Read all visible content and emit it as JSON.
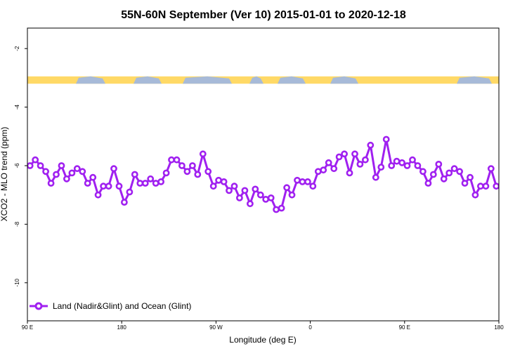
{
  "chart_data": {
    "type": "line",
    "title": "55N-60N September (Ver 10)   2015-01-01 to 2020-12-18",
    "xlabel": "Longitude (deg E)",
    "ylabel": "XCO2 - MLO trend (ppm)",
    "xlim": [
      90,
      540
    ],
    "ylim": [
      -11.3,
      -1.3
    ],
    "x_ticks": [
      {
        "value": 90,
        "label": "90 E"
      },
      {
        "value": 180,
        "label": "180"
      },
      {
        "value": 270,
        "label": "90 W"
      },
      {
        "value": 360,
        "label": "0"
      },
      {
        "value": 450,
        "label": "90 E"
      },
      {
        "value": 540,
        "label": "180"
      }
    ],
    "y_ticks": [
      {
        "value": -2,
        "label": "-2"
      },
      {
        "value": -4,
        "label": "-4"
      },
      {
        "value": -6,
        "label": "-6"
      },
      {
        "value": -8,
        "label": "-8"
      },
      {
        "value": -10,
        "label": "-10"
      }
    ],
    "band": {
      "y_top": -2.95,
      "y_bottom": -3.2,
      "land_color": "#FFD966",
      "ocean_color": "#A7BAD8"
    },
    "legend": {
      "position": "bottom-left",
      "label": "Land (Nadir&Glint) and Ocean (Glint)"
    },
    "series": [
      {
        "name": "Land (Nadir&Glint) and Ocean (Glint)",
        "color": "#A020F0",
        "x": [
          92.5,
          97.5,
          102.5,
          107.5,
          112.5,
          117.5,
          122.5,
          127.5,
          132.5,
          137.5,
          142.5,
          147.5,
          152.5,
          157.5,
          162.5,
          167.5,
          172.5,
          177.5,
          182.5,
          187.5,
          192.5,
          197.5,
          202.5,
          207.5,
          212.5,
          217.5,
          222.5,
          227.5,
          232.5,
          237.5,
          242.5,
          247.5,
          252.5,
          257.5,
          262.5,
          267.5,
          272.5,
          277.5,
          282.5,
          287.5,
          292.5,
          297.5,
          302.5,
          307.5,
          312.5,
          317.5,
          322.5,
          327.5,
          332.5,
          337.5,
          342.5,
          347.5,
          352.5,
          357.5,
          362.5,
          367.5,
          372.5,
          377.5,
          382.5,
          387.5,
          392.5,
          397.5,
          402.5,
          407.5,
          412.5,
          417.5,
          422.5,
          427.5,
          432.5,
          437.5,
          442.5,
          447.5,
          452.5,
          457.5,
          462.5,
          467.5,
          472.5,
          477.5,
          482.5,
          487.5,
          492.5,
          497.5,
          502.5,
          507.5,
          512.5,
          517.5,
          522.5,
          527.5,
          532.5,
          537.5
        ],
        "y": [
          -6.0,
          -5.8,
          -6.0,
          -6.2,
          -6.6,
          -6.3,
          -6.0,
          -6.45,
          -6.25,
          -6.1,
          -6.2,
          -6.6,
          -6.4,
          -7.0,
          -6.7,
          -6.7,
          -6.1,
          -6.7,
          -7.25,
          -6.9,
          -6.3,
          -6.6,
          -6.6,
          -6.45,
          -6.6,
          -6.55,
          -6.25,
          -5.8,
          -5.8,
          -6.0,
          -6.2,
          -6.0,
          -6.3,
          -5.6,
          -6.2,
          -6.7,
          -6.5,
          -6.55,
          -6.85,
          -6.7,
          -7.1,
          -6.85,
          -7.3,
          -6.8,
          -7.0,
          -7.15,
          -7.1,
          -7.5,
          -7.45,
          -6.75,
          -7.0,
          -6.5,
          -6.55,
          -6.55,
          -6.7,
          -6.2,
          -6.15,
          -5.9,
          -6.1,
          -5.7,
          -5.6,
          -6.25,
          -5.6,
          -5.95,
          -5.8,
          -5.3,
          -6.4,
          -6.05,
          -5.1,
          -6.0,
          -5.85,
          -5.9,
          -6.0,
          -5.8,
          -6.0,
          -6.2,
          -6.6,
          -6.3,
          -5.95,
          -6.45,
          -6.25,
          -6.1,
          -6.2,
          -6.6,
          -6.4,
          -7.0,
          -6.7,
          -6.7,
          -6.1,
          -6.7
        ]
      }
    ]
  }
}
